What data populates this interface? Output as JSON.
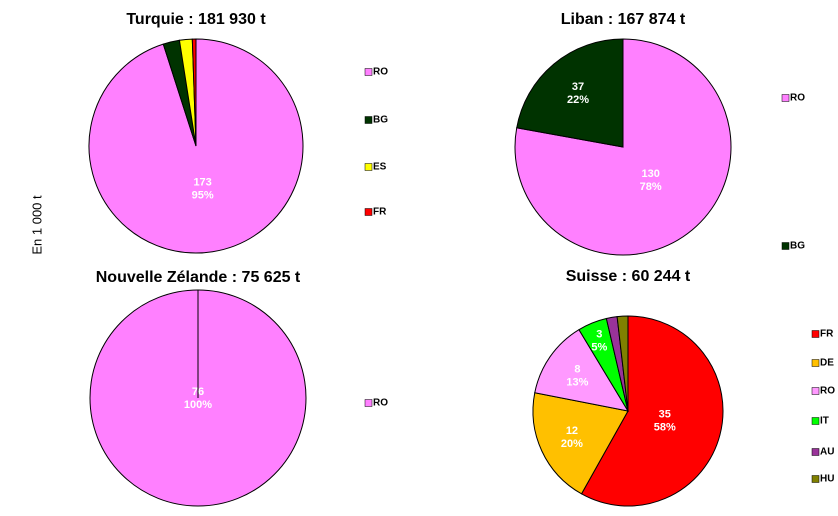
{
  "ylabel": "En 1 000 t",
  "chart_data": [
    {
      "type": "pie",
      "title": "Turquie : 181 930 t",
      "categories": [
        "RO",
        "BG",
        "ES",
        "FR"
      ],
      "values": [
        173,
        4.5,
        3.5,
        1
      ],
      "value_labels": [
        [
          "173",
          "95%"
        ],
        null,
        null,
        null
      ],
      "colors": [
        "#ff80ff",
        "#003300",
        "#ffff00",
        "#ff0000"
      ]
    },
    {
      "type": "pie",
      "title": "Liban : 167 874 t",
      "categories": [
        "RO",
        "BG"
      ],
      "values": [
        130,
        37
      ],
      "value_labels": [
        [
          "130",
          "78%"
        ],
        [
          "37",
          "22%"
        ]
      ],
      "colors": [
        "#ff80ff",
        "#003300"
      ]
    },
    {
      "type": "pie",
      "title": "Nouvelle Zélande : 75 625 t",
      "categories": [
        "RO"
      ],
      "values": [
        76
      ],
      "value_labels": [
        [
          "76",
          "100%"
        ]
      ],
      "colors": [
        "#ff80ff"
      ]
    },
    {
      "type": "pie",
      "title": "Suisse : 60 244 t",
      "categories": [
        "FR",
        "DE",
        "RO",
        "IT",
        "AU",
        "HU"
      ],
      "values": [
        35,
        12,
        8,
        3,
        1.1,
        1.1
      ],
      "value_labels": [
        [
          "35",
          "58%"
        ],
        [
          "12",
          "20%"
        ],
        [
          "8",
          "13%"
        ],
        [
          "3",
          "5%"
        ],
        null,
        null
      ],
      "colors": [
        "#ff0000",
        "#ffc000",
        "#ff99ff",
        "#00ff00",
        "#993399",
        "#808000"
      ]
    }
  ]
}
